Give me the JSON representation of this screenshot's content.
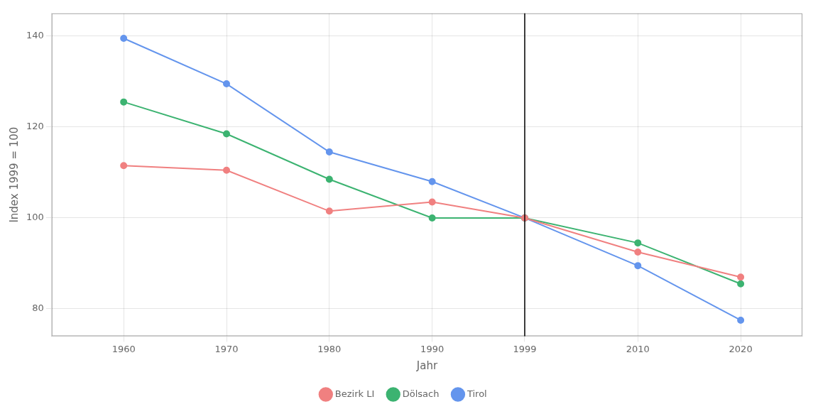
{
  "chart_data": {
    "type": "line",
    "x": [
      1960,
      1970,
      1980,
      1990,
      1999,
      2010,
      2020
    ],
    "series": [
      {
        "name": "Bezirk LI",
        "color": "#F08080",
        "marker": "circle",
        "values": [
          111.5,
          110.5,
          101.5,
          103.5,
          100.0,
          92.5,
          87.0
        ]
      },
      {
        "name": "Dölsach",
        "color": "#3CB371",
        "marker": "circle",
        "values": [
          125.5,
          118.5,
          108.5,
          100.0,
          100.0,
          94.5,
          85.5
        ]
      },
      {
        "name": "Tirol",
        "color": "#6495ED",
        "marker": "circle",
        "values": [
          139.5,
          129.5,
          114.5,
          108.0,
          100.0,
          89.5,
          77.5
        ]
      }
    ],
    "vline": {
      "x": 1999,
      "color": "#000000"
    },
    "xlabel": "Jahr",
    "ylabel": "Index 1999 = 100",
    "xlim": [
      1953,
      2026
    ],
    "ylim": [
      74,
      145
    ],
    "xticks": [
      1960,
      1970,
      1980,
      1990,
      1999,
      2010,
      2020
    ],
    "yticks": [
      80,
      100,
      120,
      140
    ],
    "grid": true,
    "legend": "bottom"
  }
}
